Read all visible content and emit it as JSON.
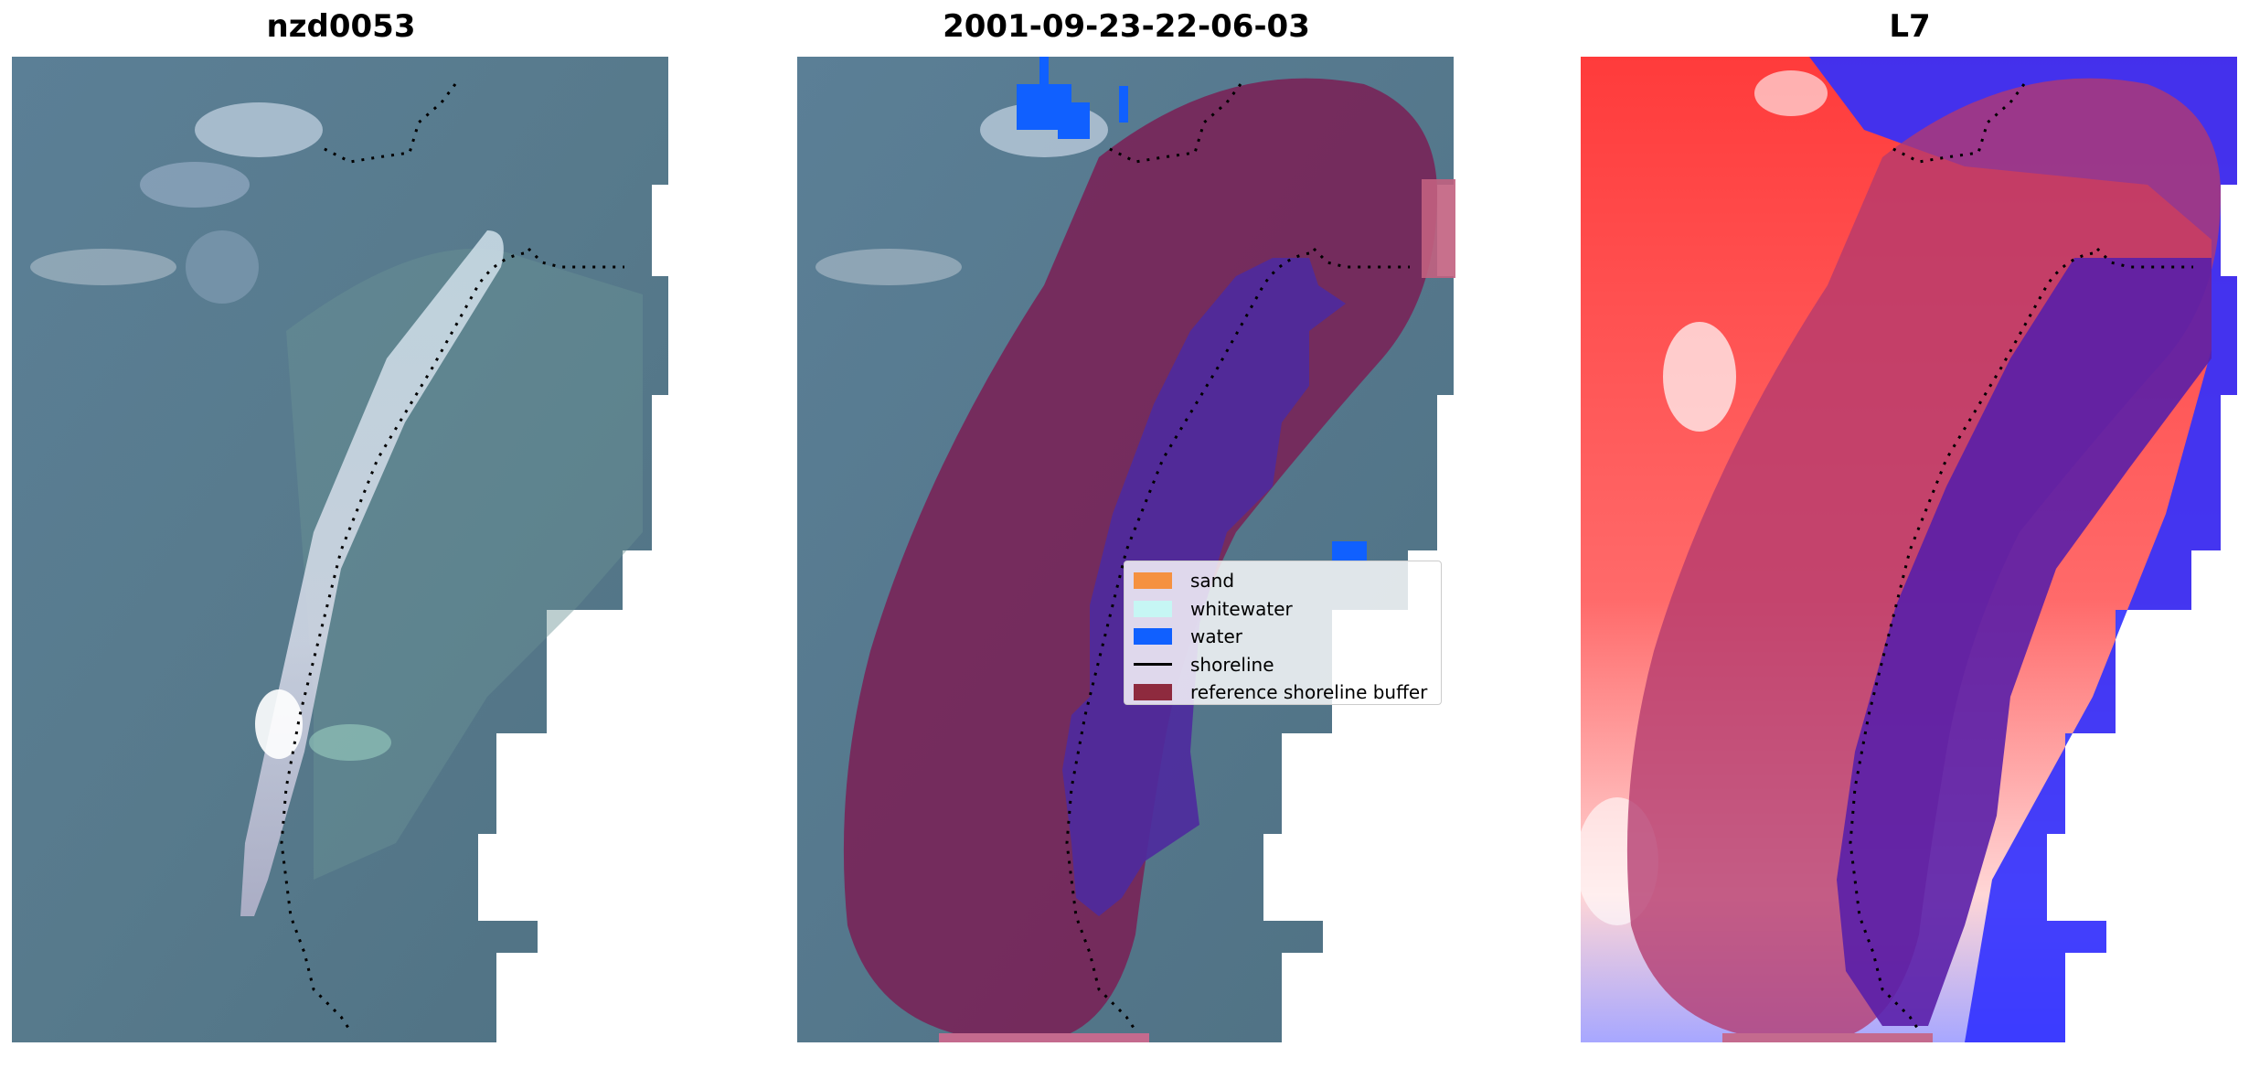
{
  "panels": [
    {
      "title": "nzd0053"
    },
    {
      "title": "2001-09-23-22-06-03"
    },
    {
      "title": "L7"
    }
  ],
  "legend": {
    "items": [
      {
        "label": "sand",
        "color": "#f59140",
        "kind": "patch"
      },
      {
        "label": "whitewater",
        "color": "#c6f6f4",
        "kind": "patch"
      },
      {
        "label": "water",
        "color": "#1060ff",
        "kind": "patch"
      },
      {
        "label": "shoreline",
        "color": "#000000",
        "kind": "line"
      },
      {
        "label": "reference shoreline buffer",
        "color": "#8e2a3e",
        "kind": "patch"
      }
    ]
  },
  "colors": {
    "satellite_base": "#56788a",
    "satellite_shallow": "#6b9a99",
    "beach": "#d4d8e4",
    "buffer": "#7a2a5e",
    "buffer_inner": "#5a2c8e",
    "water_detect": "#1060ff",
    "index_positive": "#ff1a1a",
    "index_negative": "#1a1aff"
  }
}
